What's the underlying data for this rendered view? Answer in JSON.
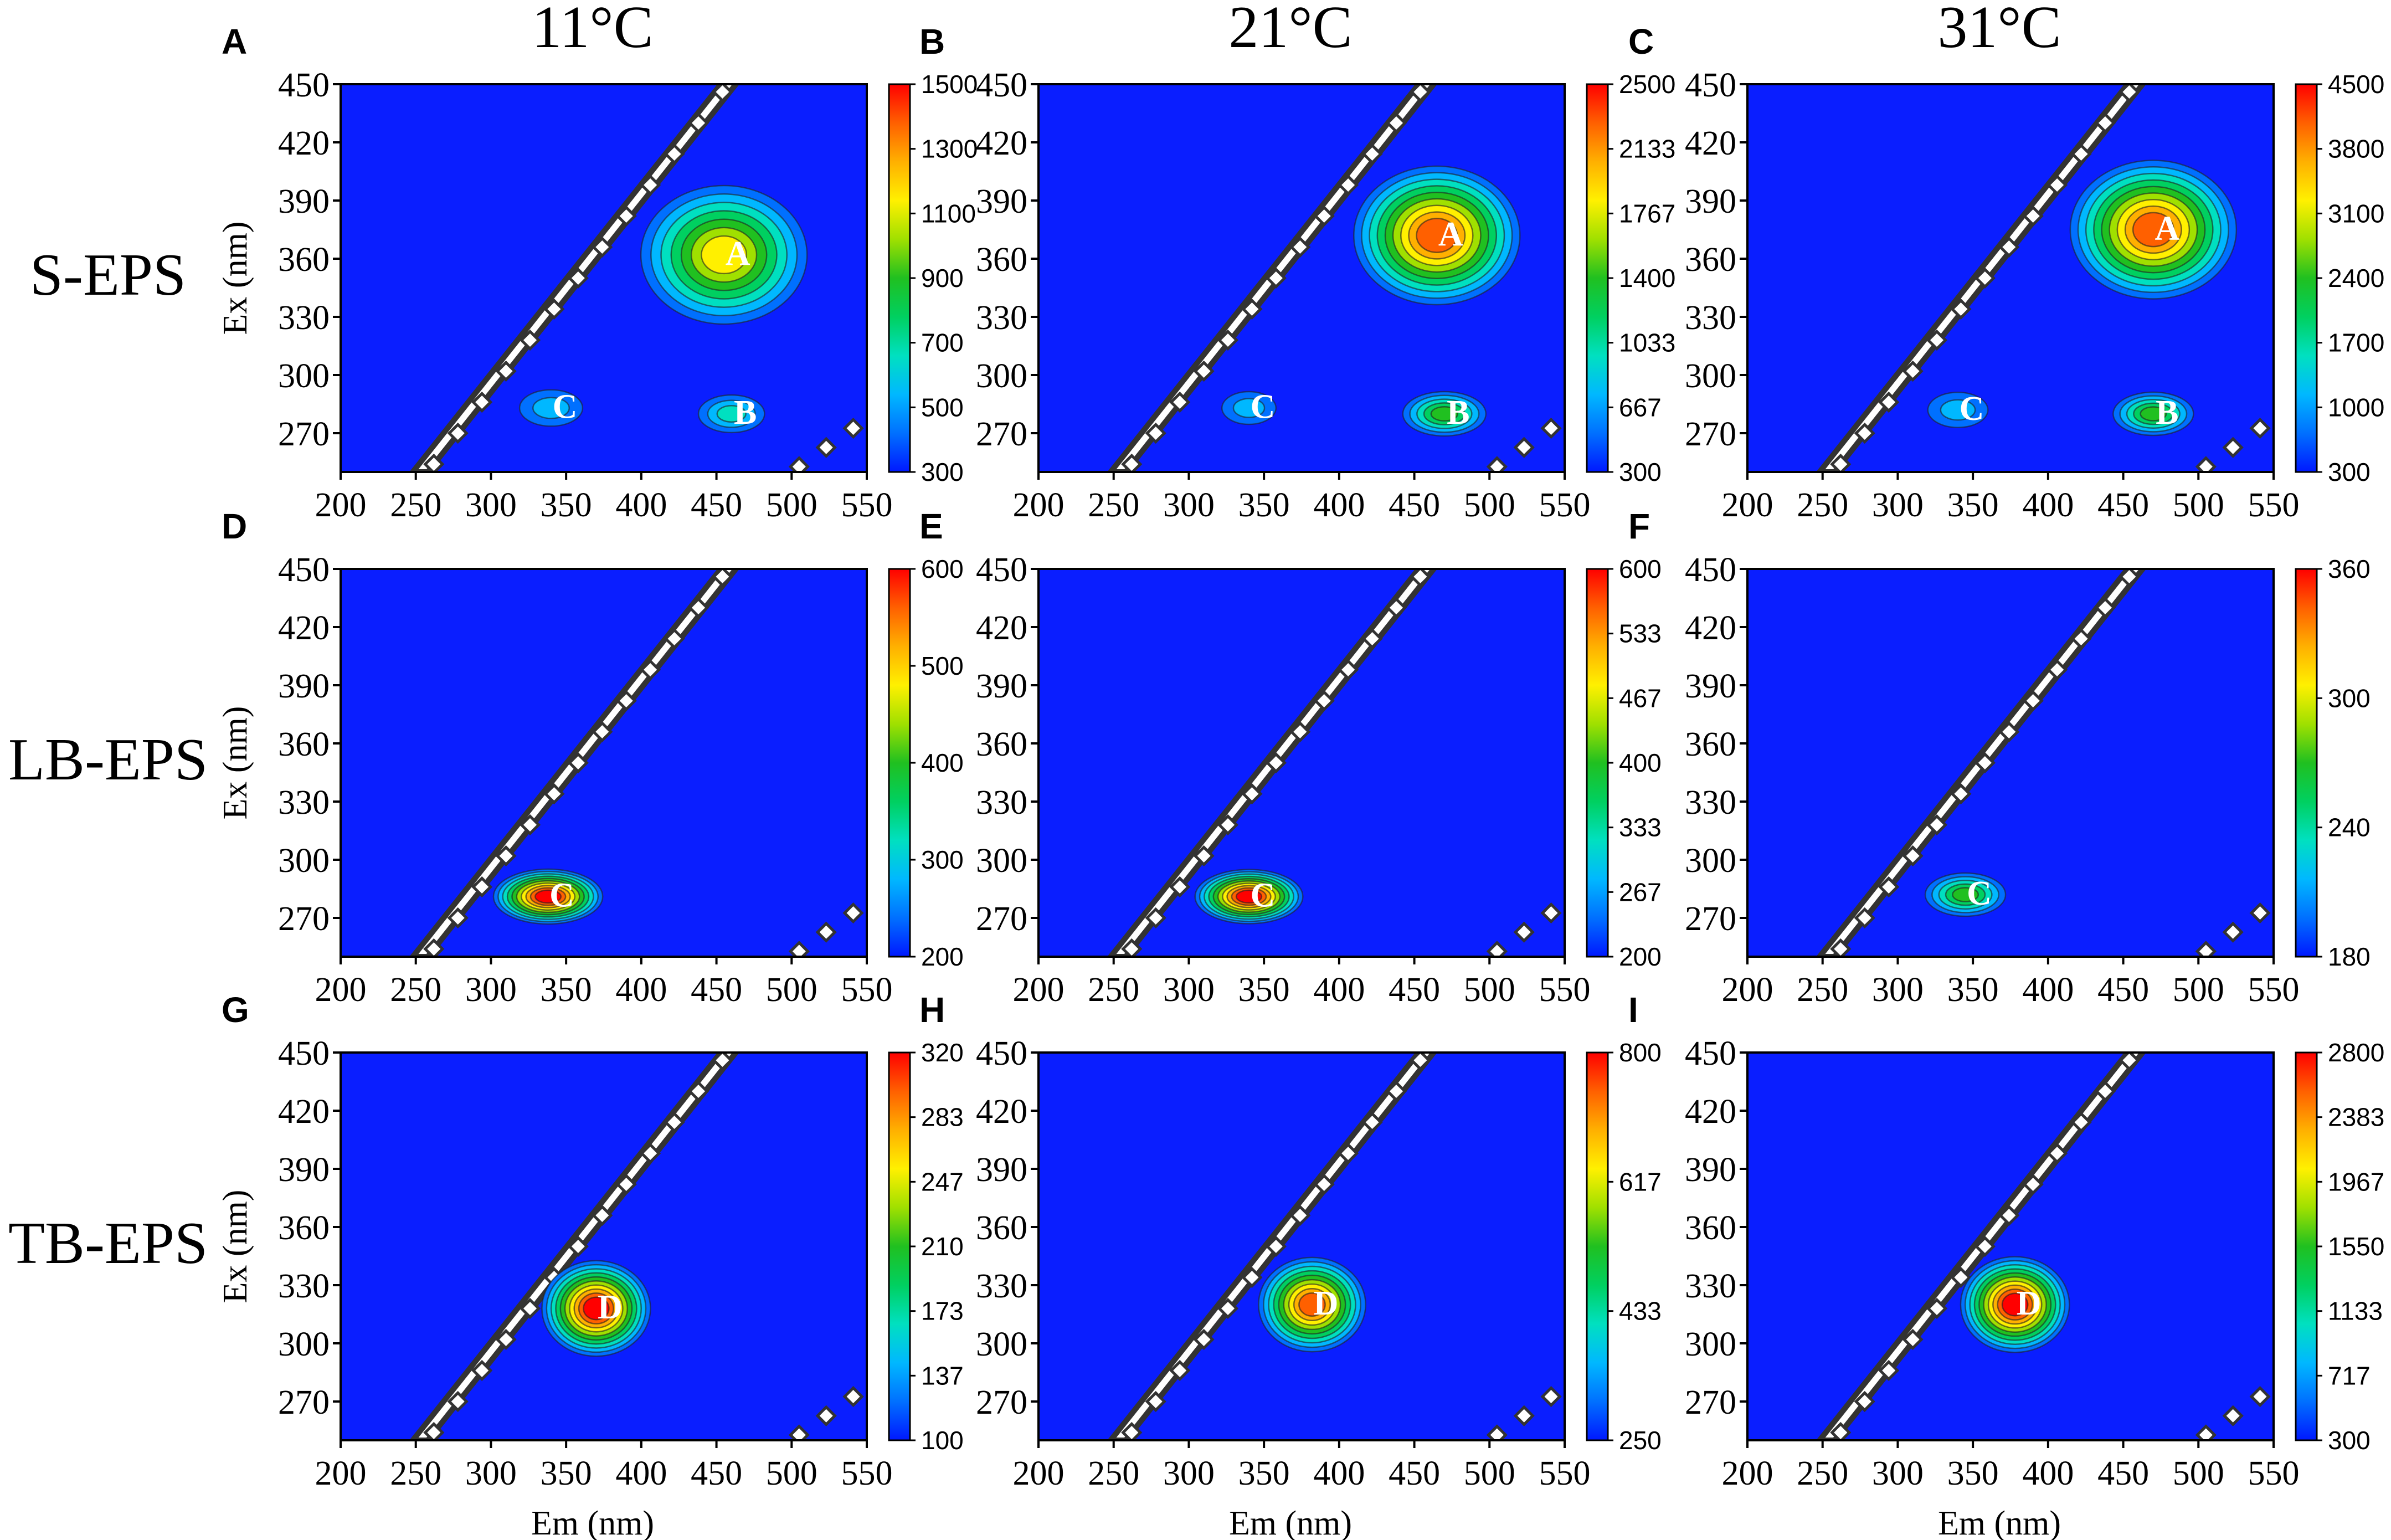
{
  "columns": [
    "11°C",
    "21°C",
    "31°C"
  ],
  "rows": [
    "S-EPS",
    "LB-EPS",
    "TB-EPS"
  ],
  "axes": {
    "xlabel": "Em (nm)",
    "ylabel": "Ex (nm)",
    "x_ticks": [
      "200",
      "250",
      "300",
      "350",
      "400",
      "450",
      "500",
      "550"
    ],
    "y_ticks": [
      "450",
      "420",
      "390",
      "360",
      "330",
      "300",
      "270"
    ]
  },
  "colors": {
    "background": "#0A1EFF",
    "scatter_band": "#FFFFFF",
    "band_edge": "#333333",
    "colormap": [
      "#0018FF",
      "#0070FF",
      "#00B8FF",
      "#00E0C0",
      "#00D060",
      "#20C020",
      "#A0E000",
      "#FFF000",
      "#FFB000",
      "#FF6000",
      "#FF0000"
    ]
  },
  "chart_data": [
    {
      "panel": "A",
      "type": "heatmap",
      "column": "11°C",
      "row": "S-EPS",
      "xlabel": "",
      "ylabel": "Ex (nm)",
      "xlim": [
        200,
        550
      ],
      "ylim": [
        250,
        450
      ],
      "colorbar": {
        "min": 300,
        "max": 1500,
        "ticks": [
          "1500",
          "1300",
          "1100",
          "900",
          "700",
          "500",
          "300"
        ]
      },
      "peaks": [
        {
          "label": "A",
          "em": 455,
          "ex": 362,
          "intensity": 1150
        },
        {
          "label": "B",
          "em": 460,
          "ex": 280,
          "intensity": 620
        },
        {
          "label": "C",
          "em": 340,
          "ex": 283,
          "intensity": 560
        }
      ]
    },
    {
      "panel": "B",
      "type": "heatmap",
      "column": "21°C",
      "row": "S-EPS",
      "xlabel": "",
      "ylabel": "",
      "xlim": [
        200,
        550
      ],
      "ylim": [
        250,
        450
      ],
      "colorbar": {
        "min": 300,
        "max": 2500,
        "ticks": [
          "2500",
          "2133",
          "1767",
          "1400",
          "1033",
          "667",
          "300"
        ]
      },
      "peaks": [
        {
          "label": "A",
          "em": 465,
          "ex": 372,
          "intensity": 2350
        },
        {
          "label": "B",
          "em": 470,
          "ex": 280,
          "intensity": 1500
        },
        {
          "label": "C",
          "em": 340,
          "ex": 283,
          "intensity": 450
        }
      ]
    },
    {
      "panel": "C",
      "type": "heatmap",
      "column": "31°C",
      "row": "S-EPS",
      "xlabel": "",
      "ylabel": "",
      "xlim": [
        200,
        550
      ],
      "ylim": [
        250,
        450
      ],
      "colorbar": {
        "min": 300,
        "max": 4500,
        "ticks": [
          "4500",
          "3800",
          "3100",
          "2400",
          "1700",
          "1000",
          "300"
        ]
      },
      "peaks": [
        {
          "label": "A",
          "em": 470,
          "ex": 375,
          "intensity": 4200
        },
        {
          "label": "B",
          "em": 470,
          "ex": 280,
          "intensity": 2400
        },
        {
          "label": "C",
          "em": 340,
          "ex": 282,
          "intensity": 1000
        }
      ]
    },
    {
      "panel": "D",
      "type": "heatmap",
      "column": "11°C",
      "row": "LB-EPS",
      "xlabel": "",
      "ylabel": "Ex (nm)",
      "xlim": [
        200,
        550
      ],
      "ylim": [
        250,
        450
      ],
      "colorbar": {
        "min": 200,
        "max": 600,
        "ticks": [
          "600",
          "500",
          "400",
          "300",
          "200"
        ]
      },
      "peaks": [
        {
          "label": "C",
          "em": 338,
          "ex": 281,
          "intensity": 590
        }
      ]
    },
    {
      "panel": "E",
      "type": "heatmap",
      "column": "21°C",
      "row": "LB-EPS",
      "xlabel": "",
      "ylabel": "",
      "xlim": [
        200,
        550
      ],
      "ylim": [
        250,
        450
      ],
      "colorbar": {
        "min": 200,
        "max": 600,
        "ticks": [
          "600",
          "533",
          "467",
          "400",
          "333",
          "267",
          "200"
        ]
      },
      "peaks": [
        {
          "label": "C",
          "em": 340,
          "ex": 281,
          "intensity": 580
        }
      ]
    },
    {
      "panel": "F",
      "type": "heatmap",
      "column": "31°C",
      "row": "LB-EPS",
      "xlabel": "",
      "ylabel": "",
      "xlim": [
        200,
        550
      ],
      "ylim": [
        250,
        450
      ],
      "colorbar": {
        "min": 180,
        "max": 360,
        "ticks": [
          "360",
          "300",
          "240",
          "180"
        ]
      },
      "peaks": [
        {
          "label": "C",
          "em": 345,
          "ex": 282,
          "intensity": 270
        }
      ]
    },
    {
      "panel": "G",
      "type": "heatmap",
      "column": "11°C",
      "row": "TB-EPS",
      "xlabel": "Em (nm)",
      "ylabel": "Ex (nm)",
      "xlim": [
        200,
        550
      ],
      "ylim": [
        250,
        450
      ],
      "colorbar": {
        "min": 100,
        "max": 320,
        "ticks": [
          "320",
          "283",
          "247",
          "210",
          "173",
          "137",
          "100"
        ]
      },
      "peaks": [
        {
          "label": "D",
          "em": 370,
          "ex": 318,
          "intensity": 310
        }
      ]
    },
    {
      "panel": "H",
      "type": "heatmap",
      "column": "21°C",
      "row": "TB-EPS",
      "xlabel": "Em (nm)",
      "ylabel": "",
      "xlim": [
        200,
        550
      ],
      "ylim": [
        250,
        450
      ],
      "colorbar": {
        "min": 250,
        "max": 800,
        "ticks": [
          "800",
          "617",
          "433",
          "250"
        ]
      },
      "peaks": [
        {
          "label": "D",
          "em": 382,
          "ex": 320,
          "intensity": 760
        }
      ]
    },
    {
      "panel": "I",
      "type": "heatmap",
      "column": "31°C",
      "row": "TB-EPS",
      "xlabel": "Em (nm)",
      "ylabel": "",
      "xlim": [
        200,
        550
      ],
      "ylim": [
        250,
        450
      ],
      "colorbar": {
        "min": 300,
        "max": 2800,
        "ticks": [
          "2800",
          "2383",
          "1967",
          "1550",
          "1133",
          "717",
          "300"
        ]
      },
      "peaks": [
        {
          "label": "D",
          "em": 378,
          "ex": 320,
          "intensity": 2700
        }
      ]
    }
  ]
}
